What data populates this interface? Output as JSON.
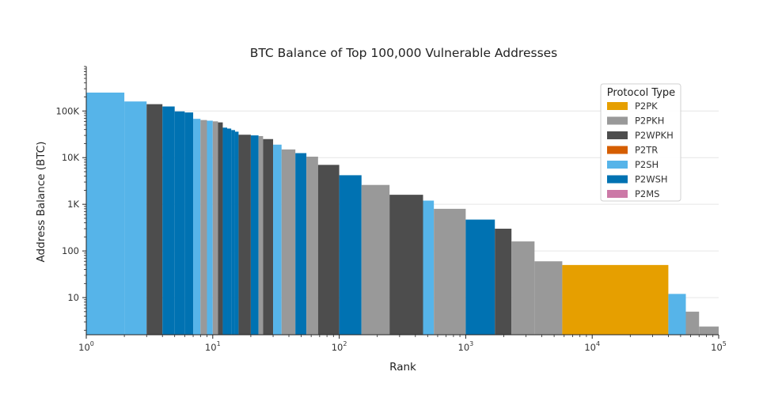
{
  "chart_data": {
    "type": "bar",
    "title": "BTC Balance of Top 100,000 Vulnerable Addresses",
    "xlabel": "Rank",
    "ylabel": "Address Balance (BTC)",
    "xscale": "log",
    "yscale": "log",
    "xlim": [
      1,
      100000
    ],
    "ylim": [
      1.6,
      900000
    ],
    "grid": "horizontal",
    "x_ticks": [
      {
        "value": 1,
        "base": "10",
        "exp": "0"
      },
      {
        "value": 10,
        "base": "10",
        "exp": "1"
      },
      {
        "value": 100,
        "base": "10",
        "exp": "2"
      },
      {
        "value": 1000,
        "base": "10",
        "exp": "3"
      },
      {
        "value": 10000,
        "base": "10",
        "exp": "4"
      },
      {
        "value": 100000,
        "base": "10",
        "exp": "5"
      }
    ],
    "y_ticks": [
      {
        "value": 10,
        "label": "10"
      },
      {
        "value": 100,
        "label": "100"
      },
      {
        "value": 1000,
        "label": "1K"
      },
      {
        "value": 10000,
        "label": "10K"
      },
      {
        "value": 100000,
        "label": "100K"
      }
    ],
    "legend": {
      "title": "Protocol Type",
      "placement": "top-right",
      "entries": [
        {
          "name": "P2PK",
          "color": "#E69F00"
        },
        {
          "name": "P2PKH",
          "color": "#999999"
        },
        {
          "name": "P2WPKH",
          "color": "#4D4D4D"
        },
        {
          "name": "P2TR",
          "color": "#D55E00"
        },
        {
          "name": "P2SH",
          "color": "#56B4E9"
        },
        {
          "name": "P2WSH",
          "color": "#0072B2"
        },
        {
          "name": "P2MS",
          "color": "#CC79A7"
        }
      ]
    },
    "segments": [
      {
        "rank_start": 1,
        "rank_end": 2,
        "balance": 248000,
        "type": "P2SH"
      },
      {
        "rank_start": 2,
        "rank_end": 3,
        "balance": 160000,
        "type": "P2SH"
      },
      {
        "rank_start": 3,
        "rank_end": 4,
        "balance": 140000,
        "type": "P2WPKH"
      },
      {
        "rank_start": 4,
        "rank_end": 5,
        "balance": 125000,
        "type": "P2WSH"
      },
      {
        "rank_start": 5,
        "rank_end": 6,
        "balance": 98000,
        "type": "P2WSH"
      },
      {
        "rank_start": 6,
        "rank_end": 7,
        "balance": 93000,
        "type": "P2WSH"
      },
      {
        "rank_start": 7,
        "rank_end": 8,
        "balance": 68000,
        "type": "P2SH"
      },
      {
        "rank_start": 8,
        "rank_end": 9,
        "balance": 64000,
        "type": "P2PKH"
      },
      {
        "rank_start": 9,
        "rank_end": 10,
        "balance": 62000,
        "type": "P2SH"
      },
      {
        "rank_start": 10,
        "rank_end": 11,
        "balance": 60000,
        "type": "P2PKH"
      },
      {
        "rank_start": 11,
        "rank_end": 12,
        "balance": 57000,
        "type": "P2WPKH"
      },
      {
        "rank_start": 12,
        "rank_end": 13,
        "balance": 44000,
        "type": "P2WSH"
      },
      {
        "rank_start": 13,
        "rank_end": 14,
        "balance": 42000,
        "type": "P2WSH"
      },
      {
        "rank_start": 14,
        "rank_end": 15,
        "balance": 39000,
        "type": "P2WSH"
      },
      {
        "rank_start": 15,
        "rank_end": 16,
        "balance": 36000,
        "type": "P2WSH"
      },
      {
        "rank_start": 16,
        "rank_end": 20,
        "balance": 31000,
        "type": "P2WPKH"
      },
      {
        "rank_start": 20,
        "rank_end": 23,
        "balance": 30000,
        "type": "P2WSH"
      },
      {
        "rank_start": 23,
        "rank_end": 25,
        "balance": 29000,
        "type": "P2PKH"
      },
      {
        "rank_start": 25,
        "rank_end": 30,
        "balance": 25000,
        "type": "P2WPKH"
      },
      {
        "rank_start": 30,
        "rank_end": 35,
        "balance": 19000,
        "type": "P2SH"
      },
      {
        "rank_start": 35,
        "rank_end": 45,
        "balance": 15000,
        "type": "P2PKH"
      },
      {
        "rank_start": 45,
        "rank_end": 55,
        "balance": 12500,
        "type": "P2WSH"
      },
      {
        "rank_start": 55,
        "rank_end": 68,
        "balance": 10500,
        "type": "P2PKH"
      },
      {
        "rank_start": 68,
        "rank_end": 100,
        "balance": 7000,
        "type": "P2WPKH"
      },
      {
        "rank_start": 100,
        "rank_end": 150,
        "balance": 4200,
        "type": "P2WSH"
      },
      {
        "rank_start": 150,
        "rank_end": 250,
        "balance": 2600,
        "type": "P2PKH"
      },
      {
        "rank_start": 250,
        "rank_end": 460,
        "balance": 1600,
        "type": "P2WPKH"
      },
      {
        "rank_start": 460,
        "rank_end": 560,
        "balance": 1200,
        "type": "P2SH"
      },
      {
        "rank_start": 560,
        "rank_end": 1000,
        "balance": 800,
        "type": "P2PKH"
      },
      {
        "rank_start": 1000,
        "rank_end": 1700,
        "balance": 470,
        "type": "P2WSH"
      },
      {
        "rank_start": 1700,
        "rank_end": 2300,
        "balance": 300,
        "type": "P2WPKH"
      },
      {
        "rank_start": 2300,
        "rank_end": 3500,
        "balance": 160,
        "type": "P2PKH"
      },
      {
        "rank_start": 3500,
        "rank_end": 5800,
        "balance": 60,
        "type": "P2PKH"
      },
      {
        "rank_start": 5800,
        "rank_end": 40000,
        "balance": 50,
        "type": "P2PK"
      },
      {
        "rank_start": 40000,
        "rank_end": 55000,
        "balance": 12,
        "type": "P2SH"
      },
      {
        "rank_start": 55000,
        "rank_end": 70000,
        "balance": 5,
        "type": "P2PKH"
      },
      {
        "rank_start": 70000,
        "rank_end": 100000,
        "balance": 2.4,
        "type": "P2PKH"
      }
    ]
  }
}
